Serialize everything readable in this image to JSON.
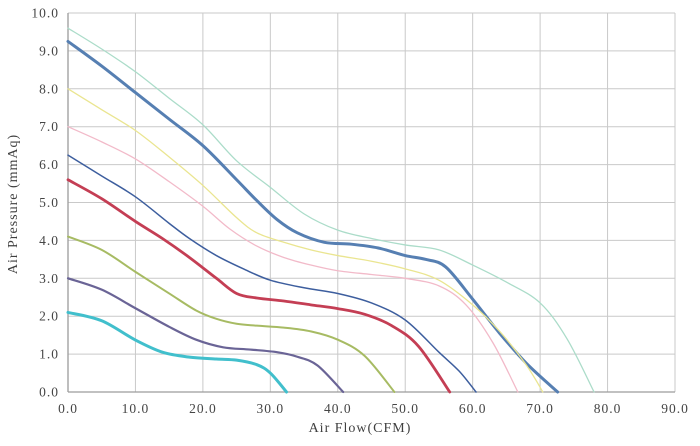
{
  "chart_data": {
    "type": "line",
    "title": "",
    "xlabel": "Air Flow(CFM)",
    "ylabel": "Air Pressure (mmAq)",
    "xlim": [
      0,
      90
    ],
    "ylim": [
      0,
      10
    ],
    "x_tick_labels": [
      "0.0",
      "10.0",
      "20.0",
      "30.0",
      "40.0",
      "50.0",
      "60.0",
      "70.0",
      "80.0",
      "90.0"
    ],
    "y_tick_labels": [
      "0.0",
      "1.0",
      "2.0",
      "3.0",
      "4.0",
      "5.0",
      "6.0",
      "7.0",
      "8.0",
      "9.0",
      "10.0"
    ],
    "grid": true,
    "legend": "none",
    "grid_color": "#c9c9c9",
    "axis_color": "#9c9c9c",
    "tick_label_color": "#454545",
    "series": [
      {
        "name": "curve-1-aqua-green",
        "color": "#abdcc9",
        "width": 1.3,
        "points": [
          [
            0,
            9.6
          ],
          [
            5,
            9.05
          ],
          [
            10,
            8.45
          ],
          [
            15,
            7.75
          ],
          [
            20,
            7.05
          ],
          [
            25,
            6.1
          ],
          [
            30,
            5.4
          ],
          [
            35,
            4.7
          ],
          [
            40,
            4.27
          ],
          [
            45,
            4.05
          ],
          [
            50,
            3.88
          ],
          [
            55,
            3.75
          ],
          [
            60,
            3.35
          ],
          [
            65,
            2.9
          ],
          [
            70,
            2.35
          ],
          [
            74,
            1.4
          ],
          [
            78,
            0
          ]
        ]
      },
      {
        "name": "curve-2-steel-blue",
        "color": "#567fb2",
        "width": 3,
        "points": [
          [
            0,
            9.25
          ],
          [
            5,
            8.6
          ],
          [
            10,
            7.9
          ],
          [
            15,
            7.2
          ],
          [
            20,
            6.5
          ],
          [
            25,
            5.6
          ],
          [
            28,
            5.05
          ],
          [
            31,
            4.55
          ],
          [
            34,
            4.2
          ],
          [
            38,
            3.95
          ],
          [
            42,
            3.9
          ],
          [
            46,
            3.8
          ],
          [
            50,
            3.6
          ],
          [
            53,
            3.5
          ],
          [
            56,
            3.3
          ],
          [
            60,
            2.45
          ],
          [
            64,
            1.55
          ],
          [
            68,
            0.75
          ],
          [
            72.6,
            0
          ]
        ]
      },
      {
        "name": "curve-3-khaki",
        "color": "#eae590",
        "width": 1.3,
        "points": [
          [
            0,
            8.0
          ],
          [
            5,
            7.45
          ],
          [
            10,
            6.9
          ],
          [
            15,
            6.2
          ],
          [
            20,
            5.45
          ],
          [
            25,
            4.6
          ],
          [
            28,
            4.2
          ],
          [
            32,
            3.95
          ],
          [
            36,
            3.75
          ],
          [
            40,
            3.6
          ],
          [
            45,
            3.45
          ],
          [
            50,
            3.25
          ],
          [
            55,
            2.95
          ],
          [
            60,
            2.3
          ],
          [
            64,
            1.6
          ],
          [
            68,
            0.7
          ],
          [
            70.4,
            0
          ]
        ]
      },
      {
        "name": "curve-4-pink",
        "color": "#f2bac9",
        "width": 1.3,
        "points": [
          [
            0,
            7.0
          ],
          [
            5,
            6.6
          ],
          [
            10,
            6.15
          ],
          [
            15,
            5.55
          ],
          [
            20,
            4.9
          ],
          [
            24,
            4.3
          ],
          [
            28,
            3.85
          ],
          [
            32,
            3.55
          ],
          [
            36,
            3.35
          ],
          [
            40,
            3.2
          ],
          [
            45,
            3.1
          ],
          [
            50,
            3.0
          ],
          [
            55,
            2.8
          ],
          [
            59,
            2.3
          ],
          [
            63,
            1.3
          ],
          [
            66.7,
            0
          ]
        ]
      },
      {
        "name": "curve-5-navy",
        "color": "#3d5e9e",
        "width": 1.5,
        "points": [
          [
            0,
            6.25
          ],
          [
            5,
            5.7
          ],
          [
            10,
            5.15
          ],
          [
            15,
            4.45
          ],
          [
            18,
            4.05
          ],
          [
            22,
            3.6
          ],
          [
            26,
            3.25
          ],
          [
            30,
            2.95
          ],
          [
            35,
            2.75
          ],
          [
            40,
            2.6
          ],
          [
            45,
            2.35
          ],
          [
            50,
            1.9
          ],
          [
            55,
            1.05
          ],
          [
            58,
            0.55
          ],
          [
            60.5,
            0
          ]
        ]
      },
      {
        "name": "curve-6-crimson",
        "color": "#c43e54",
        "width": 2.8,
        "points": [
          [
            0,
            5.6
          ],
          [
            5,
            5.1
          ],
          [
            10,
            4.5
          ],
          [
            14,
            4.05
          ],
          [
            18,
            3.55
          ],
          [
            22,
            3.0
          ],
          [
            25,
            2.6
          ],
          [
            28,
            2.48
          ],
          [
            32,
            2.4
          ],
          [
            36,
            2.3
          ],
          [
            40,
            2.2
          ],
          [
            44,
            2.05
          ],
          [
            48,
            1.75
          ],
          [
            52,
            1.2
          ],
          [
            56.6,
            0
          ]
        ]
      },
      {
        "name": "curve-7-olive",
        "color": "#a7bb63",
        "width": 2,
        "points": [
          [
            0,
            4.1
          ],
          [
            5,
            3.75
          ],
          [
            10,
            3.17
          ],
          [
            15,
            2.6
          ],
          [
            19,
            2.15
          ],
          [
            22,
            1.93
          ],
          [
            25,
            1.8
          ],
          [
            28,
            1.75
          ],
          [
            32,
            1.7
          ],
          [
            36,
            1.6
          ],
          [
            40,
            1.38
          ],
          [
            44,
            0.95
          ],
          [
            48.4,
            0
          ]
        ]
      },
      {
        "name": "curve-8-slate-purple",
        "color": "#6a6496",
        "width": 2.2,
        "points": [
          [
            0,
            3.0
          ],
          [
            5,
            2.7
          ],
          [
            10,
            2.21
          ],
          [
            15,
            1.72
          ],
          [
            19,
            1.38
          ],
          [
            23,
            1.18
          ],
          [
            27,
            1.12
          ],
          [
            31,
            1.05
          ],
          [
            34,
            0.93
          ],
          [
            37,
            0.7
          ],
          [
            40.8,
            0
          ]
        ]
      },
      {
        "name": "curve-9-teal",
        "color": "#41bfcc",
        "width": 3,
        "points": [
          [
            0,
            2.1
          ],
          [
            5,
            1.88
          ],
          [
            10,
            1.37
          ],
          [
            14,
            1.05
          ],
          [
            18,
            0.92
          ],
          [
            22,
            0.87
          ],
          [
            25,
            0.84
          ],
          [
            28,
            0.72
          ],
          [
            30,
            0.5
          ],
          [
            32.4,
            0
          ]
        ]
      }
    ]
  }
}
